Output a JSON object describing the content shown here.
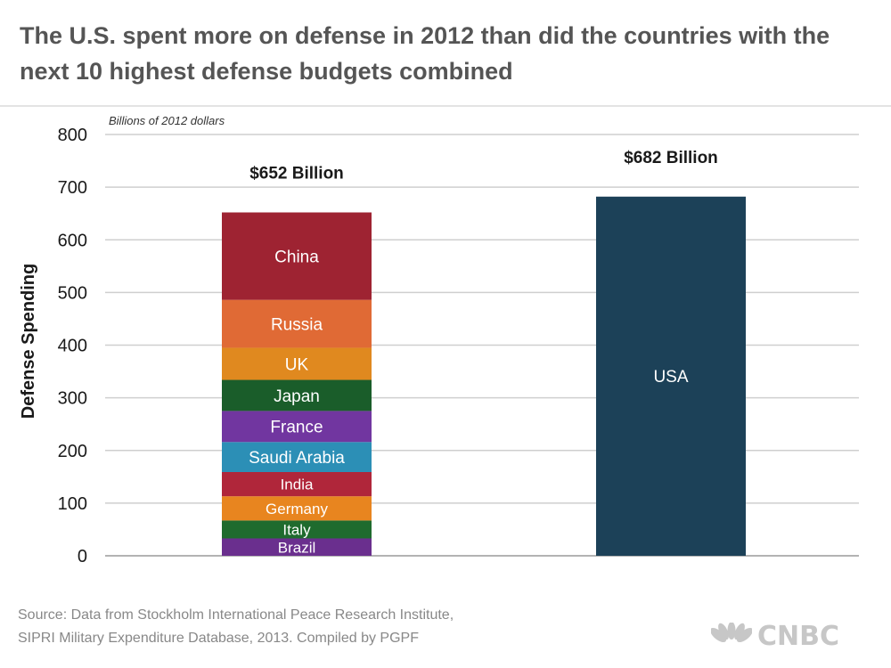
{
  "header": {
    "title": "The U.S. spent more on defense in 2012 than did the countries with the next 10 highest defense budgets combined",
    "subtitle": "Billions of 2012 dollars"
  },
  "footer": {
    "source_line1": "Source: Data from Stockholm International Peace Research Institute,",
    "source_line2": "SIPRI Military Expenditure Database, 2013. Compiled by PGPF",
    "logo": "CNBC",
    "logo_icon": "peacock-icon"
  },
  "chart_data": {
    "type": "bar",
    "stacked": true,
    "ylabel": "Defense Spending",
    "ylim": [
      0,
      800
    ],
    "yticks": [
      0,
      100,
      200,
      300,
      400,
      500,
      600,
      700,
      800
    ],
    "grid": true,
    "bars": [
      {
        "total_label": "$652 Billion",
        "segments": [
          {
            "name": "Brazil",
            "value": 33,
            "color": "#6a2f8e"
          },
          {
            "name": "Italy",
            "value": 34,
            "color": "#1f6b2e"
          },
          {
            "name": "Germany",
            "value": 46,
            "color": "#e8851f"
          },
          {
            "name": "India",
            "value": 46,
            "color": "#b0263a"
          },
          {
            "name": "Saudi Arabia",
            "value": 57,
            "color": "#2c8fb6"
          },
          {
            "name": "France",
            "value": 59,
            "color": "#7136a0"
          },
          {
            "name": "Japan",
            "value": 59,
            "color": "#1a5d2a"
          },
          {
            "name": "UK",
            "value": 61,
            "color": "#e0891f"
          },
          {
            "name": "Russia",
            "value": 91,
            "color": "#e06a35"
          },
          {
            "name": "China",
            "value": 166,
            "color": "#9e2332"
          }
        ]
      },
      {
        "total_label": "$682 Billion",
        "segments": [
          {
            "name": "USA",
            "value": 682,
            "color": "#1c4158"
          }
        ]
      }
    ]
  }
}
